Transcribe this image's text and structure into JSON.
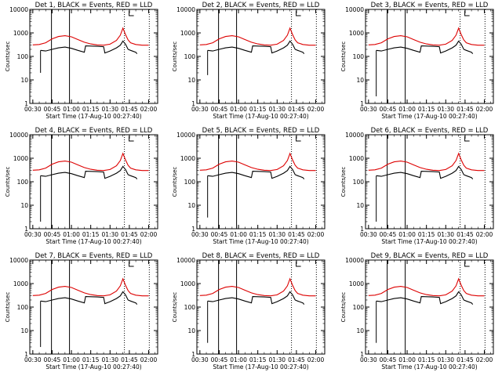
{
  "colors": {
    "events": "#000000",
    "lld": "#dd0000",
    "axis": "#000000"
  },
  "chart_data": {
    "type": "line",
    "ylabel": "Counts/sec",
    "xlabel": "Start Time (17-Aug-10 00:27:40)",
    "yscale": "log",
    "ylim": [
      1,
      10000
    ],
    "y_tick_labels": [
      "1",
      "10",
      "100",
      "1000",
      "10000"
    ],
    "x_tick_labels": [
      "00:30",
      "00:45",
      "01:00",
      "01:15",
      "01:30",
      "01:45",
      "02:00"
    ],
    "xlim": [
      "00:27:40",
      "02:07:00"
    ],
    "vertical_markers_solid": [
      "00:44:30",
      "00:58:30"
    ],
    "vertical_markers_dotted": [
      "01:41:10",
      "02:00:30"
    ],
    "legend_text": "BLACK = Events, RED = LLD",
    "panels": [
      {
        "title": "Det 1",
        "events_dip": 20
      },
      {
        "title": "Det 2",
        "events_dip": 16
      },
      {
        "title": "Det 3",
        "events_dip": 2
      },
      {
        "title": "Det 4",
        "events_dip": 2
      },
      {
        "title": "Det 5",
        "events_dip": 3
      },
      {
        "title": "Det 6",
        "events_dip": 2
      },
      {
        "title": "Det 7",
        "events_dip": 2
      },
      {
        "title": "Det 8",
        "events_dip": 3
      },
      {
        "title": "Det 9",
        "events_dip": 3
      }
    ],
    "series": [
      {
        "name": "LLD",
        "x": [
          "00:30",
          "00:35",
          "00:40",
          "00:45",
          "00:50",
          "00:55",
          "01:00",
          "01:05",
          "01:10",
          "01:15",
          "01:20",
          "01:25",
          "01:30",
          "01:35",
          "01:38",
          "01:40",
          "01:42",
          "01:44",
          "01:46",
          "01:50",
          "01:55",
          "02:00"
        ],
        "values": [
          310,
          320,
          380,
          560,
          700,
          760,
          680,
          520,
          400,
          340,
          310,
          300,
          330,
          480,
          800,
          1600,
          850,
          500,
          380,
          320,
          300,
          300
        ]
      },
      {
        "name": "Events",
        "x": [
          "00:36",
          "00:40",
          "00:45",
          "00:50",
          "00:55",
          "01:00",
          "01:05",
          "01:10",
          "01:11",
          "01:20",
          "01:25",
          "01:26",
          "01:30",
          "01:35",
          "01:38",
          "01:40",
          "01:42",
          "01:44",
          "01:46",
          "01:50",
          "01:51"
        ],
        "values": [
          180,
          170,
          200,
          230,
          250,
          220,
          180,
          150,
          280,
          270,
          260,
          140,
          170,
          230,
          300,
          450,
          330,
          200,
          180,
          150,
          130
        ]
      }
    ]
  }
}
